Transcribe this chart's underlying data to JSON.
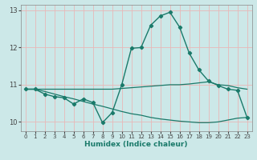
{
  "xlabel": "Humidex (Indice chaleur)",
  "bg_color": "#cce8e8",
  "grid_color": "#e8b8b8",
  "line_color": "#1a7a6a",
  "xlim": [
    -0.5,
    23.5
  ],
  "ylim": [
    9.75,
    13.15
  ],
  "yticks": [
    10,
    11,
    12,
    13
  ],
  "xticks": [
    0,
    1,
    2,
    3,
    4,
    5,
    6,
    7,
    8,
    9,
    10,
    11,
    12,
    13,
    14,
    15,
    16,
    17,
    18,
    19,
    20,
    21,
    22,
    23
  ],
  "line1_x": [
    0,
    1,
    2,
    3,
    4,
    5,
    6,
    7,
    8,
    9,
    10,
    11,
    12,
    13,
    14,
    15,
    16,
    17,
    18,
    19,
    20,
    21,
    22,
    23
  ],
  "line1_y": [
    10.88,
    10.88,
    10.75,
    10.68,
    10.65,
    10.48,
    10.62,
    10.52,
    9.98,
    10.25,
    11.0,
    11.98,
    12.0,
    12.6,
    12.85,
    12.95,
    12.55,
    11.85,
    11.4,
    11.1,
    10.98,
    10.88,
    10.85,
    10.12
  ],
  "line2_x": [
    0,
    1,
    2,
    3,
    4,
    5,
    6,
    7,
    8,
    9,
    10,
    11,
    12,
    13,
    14,
    15,
    16,
    17,
    18,
    19,
    20,
    21,
    22,
    23
  ],
  "line2_y": [
    10.88,
    10.88,
    10.88,
    10.88,
    10.88,
    10.88,
    10.88,
    10.88,
    10.88,
    10.88,
    10.9,
    10.92,
    10.94,
    10.96,
    10.98,
    11.0,
    11.0,
    11.02,
    11.05,
    11.08,
    11.0,
    10.98,
    10.92,
    10.88
  ],
  "line3_x": [
    0,
    1,
    2,
    3,
    4,
    5,
    6,
    7,
    8,
    9,
    10,
    11,
    12,
    13,
    14,
    15,
    16,
    17,
    18,
    19,
    20,
    21,
    22,
    23
  ],
  "line3_y": [
    10.88,
    10.88,
    10.82,
    10.75,
    10.68,
    10.62,
    10.55,
    10.48,
    10.42,
    10.35,
    10.28,
    10.22,
    10.18,
    10.12,
    10.08,
    10.05,
    10.02,
    10.0,
    9.98,
    9.98,
    10.0,
    10.05,
    10.1,
    10.12
  ]
}
